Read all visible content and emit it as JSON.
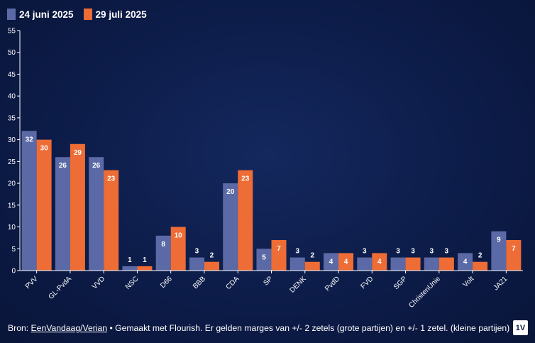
{
  "legend": {
    "items": [
      {
        "label": "24 juni 2025",
        "color": "#5b6aa6"
      },
      {
        "label": "29 juli 2025",
        "color": "#ee6c35"
      }
    ]
  },
  "footer": {
    "prefix": "Bron: ",
    "source_link": "EenVandaag/Verian",
    "suffix": " • Gemaakt met Flourish. Er gelden marges van +/- 2 zetels (grote partijen) en +/- 1 zetel. (kleine partijen)"
  },
  "logo": {
    "text": "1V"
  },
  "chart_data": {
    "type": "bar",
    "title": "",
    "xlabel": "",
    "ylabel": "",
    "ylim": [
      0,
      55
    ],
    "yticks": [
      0,
      5,
      10,
      15,
      20,
      25,
      30,
      35,
      40,
      45,
      50,
      55
    ],
    "grid": false,
    "legend_position": "top-left",
    "categories": [
      "PVV",
      "GL-PvdA",
      "VVD",
      "NSC",
      "D66",
      "BBB",
      "CDA",
      "SP",
      "DENK",
      "PvdD",
      "FVD",
      "SGP",
      "ChristenUnie",
      "Volt",
      "JA21"
    ],
    "series": [
      {
        "name": "24 juni 2025",
        "color": "#5b6aa6",
        "values": [
          32,
          26,
          26,
          1,
          8,
          3,
          20,
          5,
          3,
          4,
          3,
          3,
          3,
          4,
          9
        ]
      },
      {
        "name": "29 juli 2025",
        "color": "#ee6c35",
        "values": [
          30,
          29,
          23,
          1,
          10,
          2,
          23,
          7,
          2,
          4,
          4,
          3,
          3,
          2,
          7
        ]
      }
    ]
  }
}
